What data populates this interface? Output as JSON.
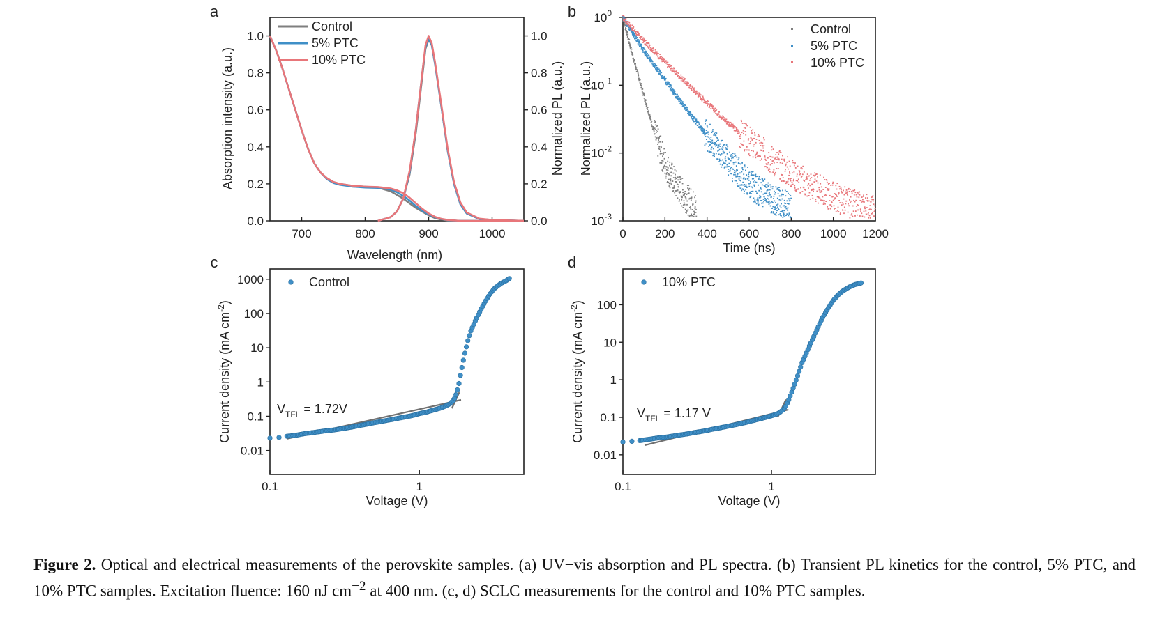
{
  "colors": {
    "control": "#7f7f7f",
    "ptc5": "#3f8fc7",
    "ptc10": "#e8767a",
    "fit": "#707070",
    "axis": "#222222"
  },
  "chart_data": [
    {
      "panel": "a",
      "type": "line",
      "xlabel": "Wavelength (nm)",
      "ylabel": "Absorption intensity (a.u.)",
      "ylabel_right": "Normalized PL (a.u.)",
      "xlim": [
        650,
        1050
      ],
      "ylim": [
        0,
        1.1
      ],
      "xticks": [
        "700",
        "800",
        "900",
        "1000"
      ],
      "yticks": [
        "0.0",
        "0.2",
        "0.4",
        "0.6",
        "0.8",
        "1.0"
      ],
      "legend": "top-left",
      "series": [
        {
          "name": "Control",
          "absorption": {
            "x": [
              650,
              660,
              670,
              680,
              690,
              700,
              710,
              720,
              730,
              740,
              750,
              760,
              780,
              800,
              820,
              840,
              850,
              860,
              870,
              880,
              890,
              900,
              910,
              920,
              930,
              950,
              1000,
              1050
            ],
            "y": [
              1.0,
              0.92,
              0.82,
              0.71,
              0.6,
              0.49,
              0.39,
              0.31,
              0.26,
              0.23,
              0.21,
              0.2,
              0.19,
              0.185,
              0.18,
              0.16,
              0.14,
              0.12,
              0.095,
              0.07,
              0.05,
              0.03,
              0.015,
              0.007,
              0.003,
              0,
              0,
              0
            ]
          },
          "pl": {
            "x": [
              820,
              840,
              850,
              860,
              870,
              880,
              890,
              895,
              900,
              905,
              910,
              920,
              930,
              940,
              950,
              960,
              980,
              1000,
              1050
            ],
            "y": [
              0,
              0.02,
              0.05,
              0.12,
              0.25,
              0.48,
              0.78,
              0.93,
              0.98,
              0.95,
              0.85,
              0.62,
              0.38,
              0.2,
              0.09,
              0.04,
              0.01,
              0.005,
              0
            ]
          }
        },
        {
          "name": "5% PTC",
          "absorption": {
            "x": [
              650,
              660,
              670,
              680,
              690,
              700,
              710,
              720,
              730,
              740,
              750,
              760,
              780,
              800,
              820,
              840,
              850,
              860,
              870,
              880,
              890,
              900,
              910,
              920,
              930,
              950,
              1000,
              1050
            ],
            "y": [
              1.0,
              0.92,
              0.82,
              0.71,
              0.6,
              0.49,
              0.39,
              0.31,
              0.26,
              0.225,
              0.205,
              0.195,
              0.185,
              0.18,
              0.178,
              0.17,
              0.155,
              0.135,
              0.11,
              0.08,
              0.055,
              0.035,
              0.02,
              0.01,
              0.004,
              0,
              0,
              0
            ]
          },
          "pl": {
            "x": [
              820,
              840,
              850,
              860,
              870,
              880,
              890,
              895,
              900,
              905,
              910,
              920,
              930,
              940,
              950,
              960,
              980,
              1000,
              1050
            ],
            "y": [
              0,
              0.02,
              0.05,
              0.12,
              0.26,
              0.5,
              0.8,
              0.94,
              0.985,
              0.95,
              0.85,
              0.62,
              0.38,
              0.2,
              0.09,
              0.04,
              0.01,
              0.005,
              0
            ]
          }
        },
        {
          "name": "10% PTC",
          "absorption": {
            "x": [
              650,
              660,
              670,
              680,
              690,
              700,
              710,
              720,
              730,
              740,
              750,
              760,
              780,
              800,
              820,
              840,
              850,
              860,
              870,
              880,
              890,
              900,
              910,
              920,
              930,
              950,
              1000,
              1050
            ],
            "y": [
              1.0,
              0.92,
              0.82,
              0.71,
              0.6,
              0.49,
              0.39,
              0.31,
              0.26,
              0.23,
              0.21,
              0.2,
              0.19,
              0.185,
              0.183,
              0.175,
              0.165,
              0.15,
              0.125,
              0.095,
              0.065,
              0.04,
              0.022,
              0.011,
              0.005,
              0,
              0,
              0
            ]
          },
          "pl": {
            "x": [
              820,
              840,
              850,
              860,
              870,
              880,
              890,
              895,
              900,
              905,
              910,
              920,
              930,
              940,
              950,
              960,
              980,
              1000,
              1050
            ],
            "y": [
              0,
              0.02,
              0.05,
              0.12,
              0.27,
              0.5,
              0.8,
              0.95,
              1.0,
              0.96,
              0.86,
              0.63,
              0.39,
              0.21,
              0.1,
              0.045,
              0.012,
              0.005,
              0
            ]
          }
        }
      ]
    },
    {
      "panel": "b",
      "type": "scatter",
      "xlabel": "Time (ns)",
      "ylabel": "Normalized PL (a.u.)",
      "xlim": [
        0,
        1200
      ],
      "ylim": [
        0.001,
        1
      ],
      "yscale": "log",
      "xticks": [
        "0",
        "200",
        "400",
        "600",
        "800",
        "1000",
        "1200"
      ],
      "legend": "top-right",
      "series": [
        {
          "name": "Control",
          "decay": {
            "x": [
              0,
              50,
              100,
              150,
              200,
              250,
              300,
              350
            ],
            "y": [
              1.0,
              0.25,
              0.07,
              0.02,
              0.007,
              0.0035,
              0.0022,
              0.0015
            ]
          }
        },
        {
          "name": "5% PTC",
          "decay": {
            "x": [
              0,
              100,
              200,
              300,
              400,
              500,
              600,
              700,
              800
            ],
            "y": [
              1.0,
              0.32,
              0.12,
              0.045,
              0.018,
              0.0075,
              0.0035,
              0.0022,
              0.0015
            ]
          }
        },
        {
          "name": "10% PTC",
          "decay": {
            "x": [
              0,
              100,
              200,
              300,
              400,
              500,
              600,
              700,
              800,
              900,
              1000,
              1100,
              1200
            ],
            "y": [
              1.0,
              0.45,
              0.22,
              0.11,
              0.055,
              0.028,
              0.015,
              0.0085,
              0.005,
              0.0032,
              0.0023,
              0.0017,
              0.0014
            ]
          }
        }
      ]
    },
    {
      "panel": "c",
      "type": "scatter",
      "xlabel": "Voltage (V)",
      "ylabel": "Current density (mA cm",
      "ylabel_sup": "-2",
      "ylabel_end": ")",
      "xscale": "log",
      "yscale": "log",
      "xlim": [
        0.1,
        5
      ],
      "ylim": [
        0.002,
        2000
      ],
      "xticks": [
        "0.1",
        "1"
      ],
      "yticks": [
        "0.01",
        "0.1",
        "1",
        "10",
        "100",
        "1000"
      ],
      "legend": "top-left",
      "series": [
        {
          "name": "Control",
          "x": [
            0.1,
            0.115,
            0.13,
            0.15,
            0.17,
            0.2,
            0.23,
            0.27,
            0.3,
            0.35,
            0.4,
            0.5,
            0.6,
            0.7,
            0.8,
            0.9,
            1.0,
            1.1,
            1.2,
            1.3,
            1.4,
            1.5,
            1.6,
            1.7,
            1.75,
            1.8,
            1.85,
            1.9,
            2.0,
            2.1,
            2.2,
            2.4,
            2.6,
            2.8,
            3.0,
            3.2,
            3.5,
            3.8,
            4.0
          ],
          "y": [
            0.023,
            0.024,
            0.026,
            0.028,
            0.031,
            0.034,
            0.037,
            0.04,
            0.043,
            0.048,
            0.054,
            0.065,
            0.075,
            0.085,
            0.095,
            0.105,
            0.12,
            0.13,
            0.145,
            0.16,
            0.175,
            0.2,
            0.23,
            0.3,
            0.4,
            0.6,
            1.0,
            2.0,
            6.0,
            15,
            30,
            70,
            140,
            250,
            400,
            550,
            750,
            900,
            1050
          ]
        }
      ],
      "fit_lines": [
        {
          "x": [
            0.13,
            1.9
          ],
          "y": [
            0.022,
            0.3
          ]
        },
        {
          "x": [
            1.65,
            1.85
          ],
          "y": [
            0.17,
            0.5
          ]
        }
      ],
      "annotation": {
        "text": "V",
        "sub": "TFL",
        "rest": " = 1.72V"
      }
    },
    {
      "panel": "d",
      "type": "scatter",
      "xlabel": "Voltage (V)",
      "ylabel": "Current density (mA cm",
      "ylabel_sup": "-2",
      "ylabel_end": ")",
      "xscale": "log",
      "yscale": "log",
      "xlim": [
        0.1,
        5
      ],
      "ylim": [
        0.003,
        900
      ],
      "xticks": [
        "0.1",
        "1"
      ],
      "yticks": [
        "0.01",
        "0.1",
        "1",
        "10",
        "100"
      ],
      "legend": "top-left",
      "series": [
        {
          "name": "10% PTC",
          "x": [
            0.1,
            0.115,
            0.13,
            0.15,
            0.17,
            0.2,
            0.23,
            0.27,
            0.3,
            0.35,
            0.4,
            0.5,
            0.6,
            0.7,
            0.8,
            0.9,
            1.0,
            1.1,
            1.15,
            1.2,
            1.25,
            1.3,
            1.4,
            1.5,
            1.6,
            1.8,
            2.0,
            2.2,
            2.4,
            2.6,
            2.8,
            3.0,
            3.3,
            3.6,
            4.0
          ],
          "y": [
            0.022,
            0.023,
            0.024,
            0.026,
            0.028,
            0.03,
            0.033,
            0.036,
            0.039,
            0.043,
            0.048,
            0.057,
            0.066,
            0.076,
            0.087,
            0.098,
            0.11,
            0.125,
            0.14,
            0.16,
            0.2,
            0.28,
            0.6,
            1.3,
            2.8,
            8,
            20,
            45,
            80,
            130,
            180,
            230,
            290,
            340,
            380
          ]
        }
      ],
      "fit_lines": [
        {
          "x": [
            0.14,
            1.3
          ],
          "y": [
            0.018,
            0.16
          ]
        },
        {
          "x": [
            1.1,
            1.25
          ],
          "y": [
            0.1,
            0.3
          ]
        }
      ],
      "annotation": {
        "text": "V",
        "sub": "TFL",
        "rest": " = 1.17 V"
      }
    }
  ],
  "caption": {
    "label": "Figure 2.",
    "text": " Optical and electrical measurements of the perovskite samples. (a) UV−vis absorption and PL spectra. (b) Transient PL kinetics for the control, 5% PTC, and 10% PTC samples. Excitation fluence: 160 nJ cm",
    "sup": "−2",
    "text2": " at 400 nm. (c, d) SCLC measurements for the control and 10% PTC samples."
  }
}
